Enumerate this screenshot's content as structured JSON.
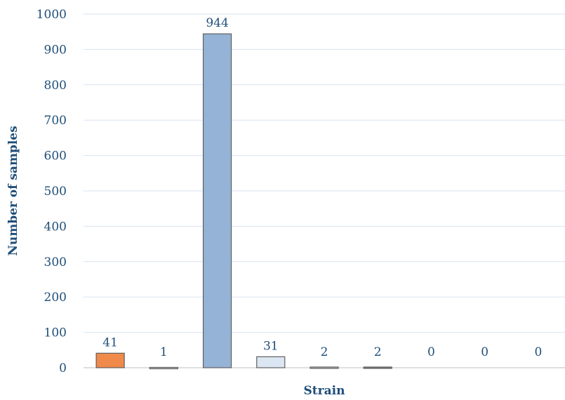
{
  "chart_data": {
    "type": "bar",
    "title": "",
    "xlabel": "Strain",
    "ylabel": "Number of samples",
    "categories": [
      "",
      "",
      "",
      "",
      "",
      "",
      "",
      "",
      ""
    ],
    "values": [
      41,
      1,
      944,
      31,
      2,
      2,
      0,
      0,
      0
    ],
    "value_labels": [
      "41",
      "1",
      "944",
      "31",
      "2",
      "2",
      "0",
      "0",
      "0"
    ],
    "bar_colors": [
      "#f08a4b",
      "#bfbfbf",
      "#95b3d7",
      "#dce6f2",
      "#bfbfbf",
      "#7f7f7f",
      "#ffffff",
      "#ffffff",
      "#ffffff"
    ],
    "ylim": [
      0,
      1000
    ],
    "yticks": [
      0,
      100,
      200,
      300,
      400,
      500,
      600,
      700,
      800,
      900,
      1000
    ],
    "ytick_labels": [
      "0",
      "100",
      "200",
      "300",
      "400",
      "500",
      "600",
      "700",
      "800",
      "900",
      "1000"
    ],
    "grid": true,
    "legend": "none"
  }
}
